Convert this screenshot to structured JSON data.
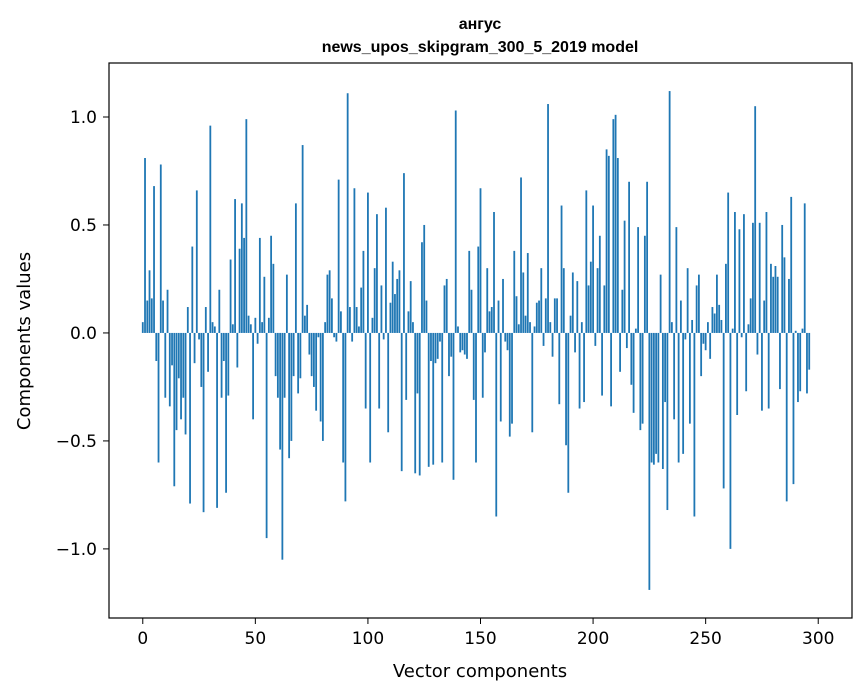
{
  "chart_data": {
    "type": "bar",
    "title": "ангус",
    "subtitle": "news_upos_skipgram_300_5_2019 model",
    "xlabel": "Vector components",
    "ylabel": "Components values",
    "xlim": [
      -15,
      315
    ],
    "ylim": [
      -1.32,
      1.25
    ],
    "xticks": [
      0,
      50,
      100,
      150,
      200,
      250,
      300
    ],
    "xtick_labels": [
      "0",
      "50",
      "100",
      "150",
      "200",
      "250",
      "300"
    ],
    "yticks": [
      -1.0,
      -0.5,
      0.0,
      0.5,
      1.0
    ],
    "ytick_labels": [
      "−1.0",
      "−0.5",
      "0.0",
      "0.5",
      "1.0"
    ],
    "grid": false,
    "bar_color": "#1f77b4",
    "values": [
      0.05,
      0.81,
      0.15,
      0.29,
      0.16,
      0.68,
      -0.13,
      -0.6,
      0.78,
      0.15,
      -0.3,
      0.2,
      -0.34,
      -0.15,
      -0.71,
      -0.45,
      -0.21,
      -0.4,
      -0.3,
      -0.47,
      0.12,
      -0.79,
      0.4,
      -0.14,
      0.66,
      -0.03,
      -0.25,
      -0.83,
      0.12,
      -0.18,
      0.96,
      0.05,
      0.03,
      -0.81,
      0.2,
      -0.3,
      -0.13,
      -0.74,
      -0.29,
      0.34,
      0.04,
      0.62,
      -0.16,
      0.39,
      0.6,
      0.44,
      0.99,
      0.08,
      0.04,
      -0.4,
      0.07,
      -0.05,
      0.44,
      0.05,
      0.26,
      -0.95,
      0.07,
      0.45,
      0.32,
      -0.2,
      -0.3,
      -0.54,
      -1.05,
      -0.3,
      0.27,
      -0.58,
      -0.5,
      -0.2,
      0.6,
      -0.28,
      -0.21,
      0.87,
      0.08,
      0.13,
      -0.1,
      -0.2,
      -0.25,
      -0.36,
      -0.02,
      -0.41,
      -0.5,
      0.05,
      0.27,
      0.29,
      0.16,
      -0.02,
      -0.04,
      0.71,
      0.1,
      -0.6,
      -0.78,
      1.11,
      0.12,
      -0.04,
      0.67,
      0.12,
      0.03,
      0.21,
      0.38,
      -0.35,
      0.65,
      -0.6,
      0.07,
      0.3,
      0.55,
      -0.35,
      0.22,
      -0.03,
      0.58,
      -0.46,
      0.14,
      0.33,
      0.18,
      0.25,
      0.29,
      -0.64,
      0.74,
      -0.31,
      0.1,
      0.24,
      0.05,
      -0.65,
      -0.28,
      -0.66,
      0.42,
      0.5,
      0.15,
      -0.62,
      -0.13,
      -0.61,
      -0.14,
      -0.12,
      -0.04,
      -0.6,
      0.22,
      0.25,
      -0.2,
      -0.11,
      -0.68,
      1.03,
      0.03,
      -0.09,
      -0.08,
      -0.1,
      -0.12,
      0.38,
      0.2,
      -0.31,
      -0.6,
      0.4,
      0.67,
      -0.3,
      -0.09,
      0.3,
      0.1,
      0.12,
      0.56,
      -0.85,
      0.15,
      -0.41,
      0.25,
      -0.04,
      -0.08,
      -0.48,
      -0.42,
      0.38,
      0.17,
      0.04,
      0.72,
      0.28,
      0.08,
      0.37,
      0.05,
      -0.46,
      0.03,
      0.14,
      0.15,
      0.3,
      -0.06,
      0.16,
      1.06,
      0.05,
      -0.11,
      0.16,
      0.16,
      -0.33,
      0.59,
      0.3,
      -0.52,
      -0.74,
      0.08,
      0.28,
      -0.09,
      0.24,
      -0.35,
      0.05,
      -0.32,
      0.66,
      0.22,
      0.33,
      0.59,
      -0.06,
      0.3,
      0.45,
      -0.29,
      0.22,
      0.85,
      0.82,
      -0.34,
      0.99,
      1.01,
      0.81,
      -0.18,
      0.2,
      0.52,
      -0.07,
      0.7,
      -0.24,
      -0.37,
      0.02,
      0.49,
      -0.45,
      -0.42,
      0.45,
      0.7,
      -1.19,
      -0.6,
      -0.61,
      -0.56,
      -0.6,
      0.27,
      -0.63,
      -0.32,
      -0.82,
      1.12,
      0.05,
      -0.4,
      0.49,
      -0.6,
      0.15,
      -0.56,
      -0.03,
      0.3,
      -0.42,
      0.06,
      -0.85,
      0.22,
      0.27,
      -0.2,
      -0.05,
      -0.08,
      0.05,
      -0.12,
      0.12,
      0.09,
      0.27,
      0.13,
      0.06,
      -0.72,
      0.32,
      0.65,
      -1.0,
      0.02,
      0.56,
      -0.38,
      0.48,
      -0.02,
      0.55,
      -0.27,
      0.04,
      0.16,
      0.51,
      1.05,
      -0.1,
      0.51,
      -0.36,
      0.15,
      0.56,
      -0.35,
      0.32,
      0.26,
      0.31,
      0.26,
      -0.26,
      0.5,
      0.35,
      -0.78,
      0.25,
      0.63,
      -0.7,
      0.01,
      -0.32,
      -0.27,
      0.02,
      0.6,
      -0.28,
      -0.17
    ]
  }
}
